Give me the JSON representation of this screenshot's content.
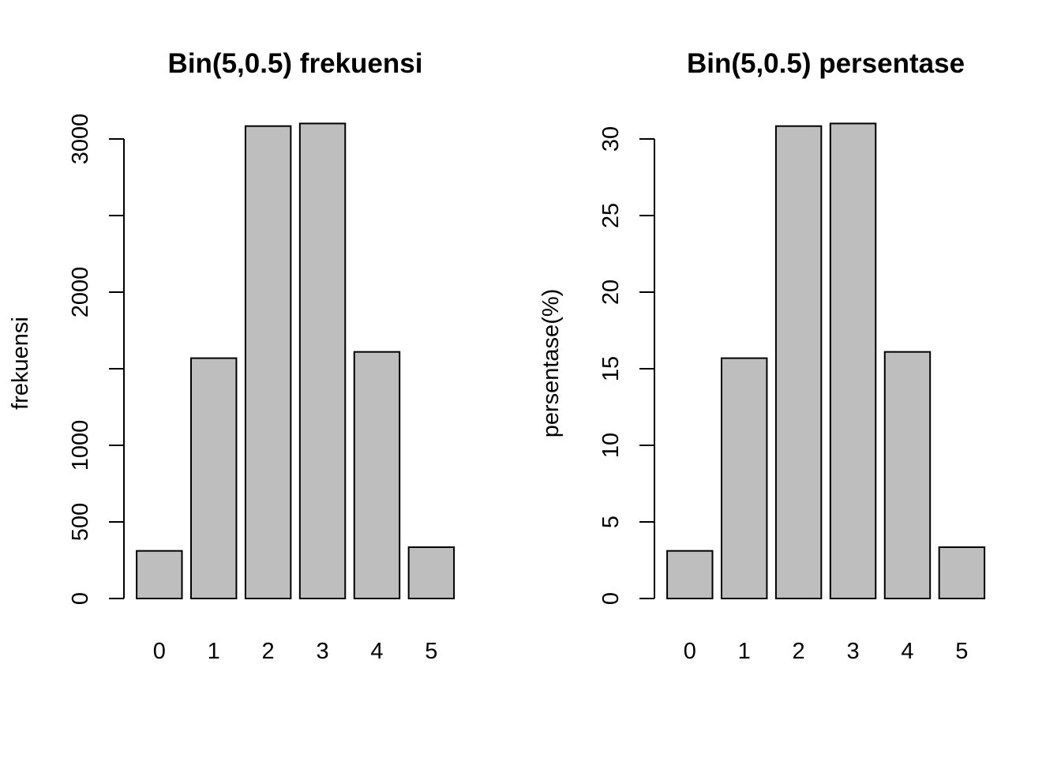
{
  "chart_data": [
    {
      "type": "bar",
      "title": "Bin(5,0.5) frekuensi",
      "xlabel": "",
      "ylabel": "frekuensi",
      "categories": [
        "0",
        "1",
        "2",
        "3",
        "4",
        "5"
      ],
      "values": [
        311,
        1569,
        3084,
        3101,
        1610,
        335
      ],
      "yticks": [
        0,
        500,
        1000,
        1500,
        2000,
        2500,
        3000
      ],
      "ytick_labels": [
        "0",
        "500",
        "1000",
        "",
        "2000",
        "",
        "3000"
      ],
      "ylim": [
        0,
        3101
      ],
      "bar_color": "#bebebe",
      "edge_color": "#000000",
      "grid": false
    },
    {
      "type": "bar",
      "title": "Bin(5,0.5) persentase",
      "xlabel": "",
      "ylabel": "persentase(%)",
      "categories": [
        "0",
        "1",
        "2",
        "3",
        "4",
        "5"
      ],
      "values": [
        3.11,
        15.69,
        30.84,
        31.01,
        16.1,
        3.35
      ],
      "yticks": [
        0,
        5,
        10,
        15,
        20,
        25,
        30
      ],
      "ytick_labels": [
        "0",
        "5",
        "10",
        "15",
        "20",
        "25",
        "30"
      ],
      "ylim": [
        0,
        31.01
      ],
      "bar_color": "#bebebe",
      "edge_color": "#000000",
      "grid": false
    }
  ]
}
